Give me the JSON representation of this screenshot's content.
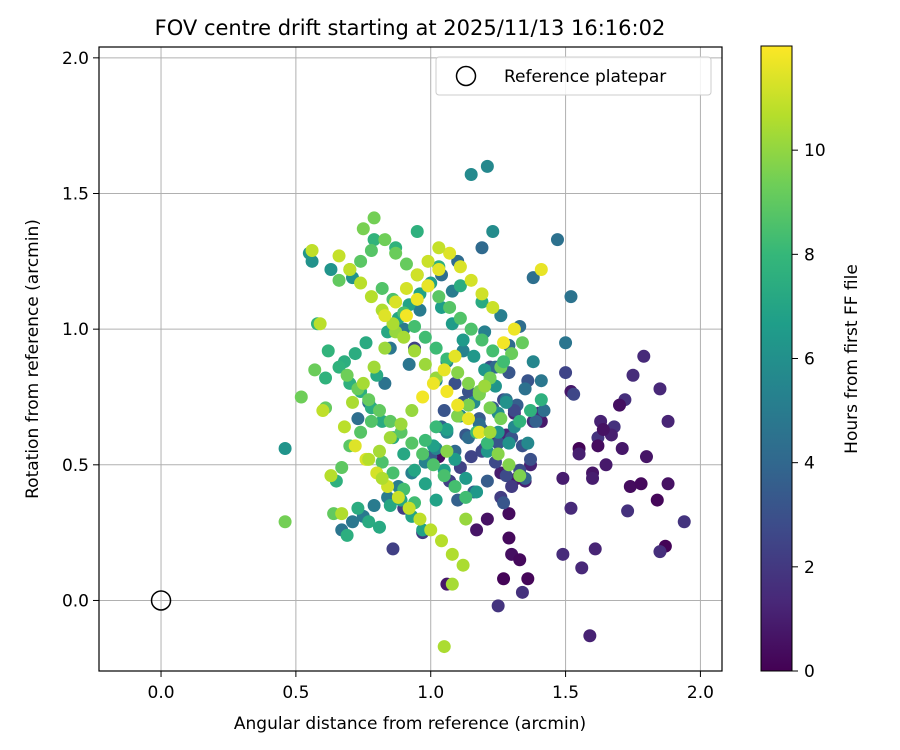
{
  "chart_data": {
    "type": "scatter",
    "title": "FOV centre drift starting at 2025/11/13 16:16:02",
    "xlabel": "Angular distance from reference (arcmin)",
    "ylabel": "Rotation from reference (arcmin)",
    "xlim": [
      -0.23,
      2.08
    ],
    "ylim": [
      -0.26,
      2.04
    ],
    "xticks": [
      0.0,
      0.5,
      1.0,
      1.5,
      2.0
    ],
    "yticks": [
      0.0,
      0.5,
      1.0,
      1.5,
      2.0
    ],
    "xtick_labels": [
      "0.0",
      "0.5",
      "1.0",
      "1.5",
      "2.0"
    ],
    "ytick_labels": [
      "0.0",
      "0.5",
      "1.0",
      "1.5",
      "2.0"
    ],
    "grid": true,
    "legend": {
      "position": "top-right",
      "label": "Reference platepar"
    },
    "reference_point": {
      "x": 0.0,
      "y": 0.0
    },
    "colorbar": {
      "label": "Hours from first FF file",
      "range": [
        0,
        12
      ],
      "ticks": [
        0,
        2,
        4,
        6,
        8,
        10
      ],
      "tick_labels": [
        "0",
        "2",
        "4",
        "6",
        "8",
        "10"
      ],
      "colormap": "viridis"
    },
    "colormap_stops": [
      "#440154",
      "#482878",
      "#3e4989",
      "#31688e",
      "#26828e",
      "#1f9e89",
      "#35b779",
      "#6ece58",
      "#b5de2b",
      "#fde725"
    ],
    "series": [
      {
        "name": "hours 0-2",
        "hours": 1.0,
        "x": [
          1.55,
          1.62,
          1.68,
          1.72,
          1.75,
          1.79,
          1.85,
          1.88,
          1.63,
          1.67,
          1.49,
          1.41,
          1.52,
          1.6,
          1.64,
          1.7,
          1.74,
          1.78,
          1.84,
          1.87,
          1.94,
          1.73,
          1.85,
          1.49,
          1.52,
          1.56,
          1.61,
          1.59,
          1.55,
          1.6,
          1.65,
          1.71,
          1.8,
          1.88,
          1.3,
          1.29,
          1.33,
          1.36,
          1.27,
          1.25,
          1.34,
          1.4,
          1.38,
          1.23,
          1.28,
          1.31,
          1.37,
          1.35,
          1.26,
          1.32,
          1.06,
          1.17,
          1.21,
          1.03,
          1.62,
          1.29
        ],
        "y": [
          0.56,
          0.6,
          0.64,
          0.74,
          0.83,
          0.9,
          0.78,
          0.66,
          0.66,
          0.61,
          0.45,
          0.66,
          0.77,
          0.47,
          0.63,
          0.72,
          0.42,
          0.43,
          0.37,
          0.2,
          0.29,
          0.33,
          0.18,
          0.17,
          0.34,
          0.12,
          0.19,
          -0.13,
          0.54,
          0.45,
          0.5,
          0.56,
          0.53,
          0.43,
          0.17,
          0.32,
          0.15,
          0.08,
          0.08,
          -0.02,
          0.03,
          0.69,
          0.66,
          0.59,
          0.61,
          0.69,
          0.5,
          0.44,
          0.47,
          0.45,
          0.06,
          0.26,
          0.3,
          0.53,
          0.57,
          0.23
        ]
      },
      {
        "name": "hours 2-4",
        "hours": 3.0,
        "x": [
          1.2,
          1.25,
          1.3,
          1.34,
          1.37,
          1.33,
          1.28,
          1.24,
          1.19,
          1.15,
          1.11,
          1.07,
          1.26,
          1.3,
          1.35,
          1.39,
          1.32,
          1.23,
          1.18,
          1.12,
          1.29,
          1.36,
          1.14,
          1.09,
          1.22,
          1.27,
          1.31,
          1.53,
          1.5,
          0.94,
          0.86,
          0.9,
          0.97,
          1.04,
          1.1,
          1.16,
          1.21,
          1.0,
          1.13,
          1.27,
          1.05,
          1.19
        ],
        "y": [
          0.56,
          0.58,
          0.6,
          0.57,
          0.52,
          0.48,
          0.46,
          0.51,
          0.55,
          0.53,
          0.49,
          0.44,
          0.38,
          0.42,
          0.45,
          0.66,
          0.72,
          0.71,
          0.67,
          0.73,
          0.84,
          0.81,
          0.77,
          0.8,
          0.86,
          0.74,
          0.7,
          0.76,
          0.84,
          0.93,
          0.19,
          0.34,
          0.25,
          0.64,
          0.37,
          0.4,
          0.44,
          0.53,
          0.61,
          0.36,
          0.7,
          0.63
        ]
      },
      {
        "name": "hours 4-6",
        "hours": 5.0,
        "x": [
          1.41,
          1.5,
          1.52,
          1.47,
          1.38,
          1.33,
          1.29,
          1.24,
          1.2,
          1.16,
          1.11,
          1.06,
          1.02,
          0.98,
          0.93,
          0.88,
          0.84,
          0.79,
          0.75,
          0.71,
          0.67,
          1.28,
          1.35,
          1.42,
          1.18,
          1.14,
          1.09,
          1.25,
          1.31,
          1.36,
          1.02,
          1.06,
          1.12,
          1.2,
          1.26,
          1.08,
          0.96,
          0.9,
          0.85,
          0.92,
          0.83,
          0.77,
          0.73,
          1.04,
          1.1,
          1.19,
          1.23,
          1.15,
          1.21,
          1.38
        ],
        "y": [
          0.81,
          0.95,
          1.12,
          1.33,
          1.19,
          1.01,
          0.94,
          0.86,
          0.79,
          0.73,
          0.68,
          0.62,
          0.56,
          0.51,
          0.47,
          0.42,
          0.38,
          0.35,
          0.31,
          0.29,
          0.26,
          0.74,
          0.78,
          0.7,
          0.65,
          0.6,
          0.55,
          0.69,
          0.64,
          0.58,
          0.81,
          0.88,
          0.92,
          0.99,
          1.05,
          1.14,
          1.07,
          1.0,
          0.93,
          0.87,
          0.8,
          0.73,
          0.67,
          1.2,
          1.25,
          1.3,
          1.36,
          1.57,
          1.6,
          0.88
        ]
      },
      {
        "name": "hours 6-8",
        "hours": 7.0,
        "x": [
          0.46,
          0.56,
          0.58,
          0.61,
          0.65,
          0.69,
          0.73,
          0.77,
          0.81,
          0.85,
          0.89,
          0.93,
          0.97,
          1.01,
          1.05,
          1.09,
          1.13,
          1.17,
          1.21,
          1.25,
          1.29,
          1.33,
          1.37,
          1.41,
          0.68,
          0.72,
          0.76,
          0.8,
          0.84,
          0.88,
          0.92,
          0.96,
          1.0,
          1.04,
          1.08,
          1.12,
          1.16,
          1.2,
          1.24,
          1.28,
          0.62,
          0.66,
          0.7,
          0.74,
          0.78,
          0.82,
          0.86,
          0.9,
          0.94,
          0.98,
          1.02,
          1.06,
          1.1,
          1.14,
          1.18,
          1.22,
          0.55,
          0.63,
          0.71,
          0.79,
          0.87,
          0.95,
          1.03,
          1.11,
          1.19
        ],
        "y": [
          0.56,
          1.25,
          1.02,
          0.82,
          0.44,
          0.24,
          0.34,
          0.29,
          0.27,
          0.35,
          0.37,
          0.31,
          0.26,
          0.57,
          0.48,
          0.52,
          0.45,
          0.4,
          0.55,
          0.62,
          0.58,
          0.66,
          0.7,
          0.74,
          0.88,
          0.91,
          0.95,
          0.83,
          0.99,
          1.04,
          1.09,
          1.13,
          1.17,
          1.08,
          1.02,
          0.96,
          0.9,
          0.85,
          0.79,
          0.73,
          0.92,
          0.86,
          0.8,
          0.77,
          0.71,
          0.66,
          0.6,
          0.54,
          0.48,
          0.43,
          0.37,
          0.63,
          0.68,
          0.72,
          0.76,
          0.81,
          1.28,
          1.22,
          1.19,
          1.33,
          1.3,
          1.36,
          1.23,
          1.16,
          1.1
        ]
      },
      {
        "name": "hours 8-10",
        "hours": 9.0,
        "x": [
          0.46,
          0.52,
          0.57,
          0.61,
          0.64,
          0.67,
          0.7,
          0.74,
          0.78,
          0.82,
          0.86,
          0.9,
          0.94,
          0.98,
          1.02,
          1.06,
          1.1,
          1.14,
          1.18,
          1.22,
          1.26,
          1.3,
          1.34,
          0.66,
          0.7,
          0.74,
          0.78,
          0.82,
          0.86,
          0.9,
          0.94,
          0.98,
          1.02,
          1.06,
          1.1,
          1.14,
          1.18,
          1.22,
          1.26,
          0.69,
          0.73,
          0.77,
          0.81,
          0.85,
          0.89,
          0.93,
          0.97,
          1.01,
          1.05,
          1.09,
          1.13,
          1.17,
          1.21,
          1.25,
          1.29,
          1.33,
          0.75,
          0.79,
          0.83,
          0.87,
          0.91,
          0.95,
          0.99,
          1.03,
          1.07,
          1.11,
          1.15,
          1.19,
          1.23,
          1.27
        ],
        "y": [
          0.29,
          0.75,
          0.85,
          0.71,
          0.32,
          0.49,
          0.57,
          0.62,
          0.66,
          0.51,
          0.47,
          0.41,
          0.36,
          0.59,
          0.64,
          0.55,
          0.68,
          0.72,
          0.77,
          0.82,
          0.86,
          0.91,
          0.95,
          1.18,
          1.22,
          1.25,
          1.29,
          1.15,
          1.11,
          1.06,
          1.01,
          0.97,
          0.93,
          0.89,
          0.84,
          0.8,
          0.76,
          0.71,
          0.67,
          0.83,
          0.78,
          0.74,
          0.7,
          0.66,
          0.62,
          0.58,
          0.54,
          0.5,
          0.46,
          0.42,
          0.38,
          0.62,
          0.58,
          0.54,
          0.5,
          0.46,
          1.37,
          1.41,
          1.33,
          1.28,
          1.24,
          1.2,
          1.16,
          1.12,
          1.08,
          1.04,
          1.0,
          0.96,
          0.92,
          0.88
        ]
      },
      {
        "name": "hours 10-12",
        "hours": 11.0,
        "x": [
          0.56,
          0.59,
          0.63,
          0.67,
          0.71,
          0.75,
          0.79,
          0.83,
          0.87,
          0.91,
          0.95,
          0.99,
          1.03,
          1.07,
          1.11,
          1.15,
          1.19,
          1.23,
          0.66,
          0.7,
          0.74,
          0.78,
          0.82,
          0.86,
          0.9,
          0.94,
          0.98,
          1.02,
          1.06,
          1.1,
          1.14,
          1.18,
          0.72,
          0.76,
          0.8,
          0.84,
          0.88,
          0.92,
          0.96,
          1.0,
          1.04,
          1.08,
          1.12,
          0.81,
          0.85,
          0.89,
          0.93,
          0.97,
          1.01,
          1.05,
          1.09,
          0.83,
          0.87,
          0.91,
          0.95,
          0.99,
          1.03,
          0.6,
          0.68,
          0.77,
          0.82,
          1.05,
          1.08,
          1.22,
          1.2,
          1.13,
          1.27,
          1.31,
          1.41
        ],
        "y": [
          1.29,
          1.02,
          0.46,
          0.32,
          0.73,
          0.8,
          0.86,
          0.93,
          0.99,
          1.05,
          1.11,
          1.16,
          1.22,
          1.28,
          1.23,
          1.18,
          1.13,
          1.08,
          1.27,
          1.22,
          1.17,
          1.12,
          1.07,
          1.02,
          0.97,
          0.92,
          0.87,
          0.82,
          0.77,
          0.72,
          0.67,
          0.62,
          0.57,
          0.52,
          0.47,
          0.42,
          0.38,
          0.34,
          0.3,
          0.26,
          0.22,
          0.17,
          0.13,
          0.55,
          0.6,
          0.65,
          0.7,
          0.75,
          0.8,
          0.85,
          0.9,
          1.05,
          1.1,
          1.15,
          1.2,
          1.25,
          1.3,
          0.7,
          0.64,
          0.52,
          0.45,
          -0.17,
          0.06,
          0.62,
          0.79,
          0.3,
          0.95,
          1.0,
          1.22
        ]
      }
    ]
  }
}
